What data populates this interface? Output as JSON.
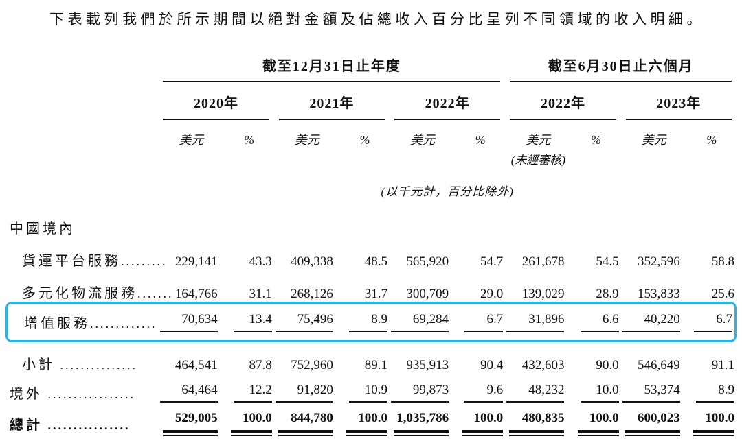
{
  "intro": "下表載列我們於所示期間以絕對金額及佔總收入百分比呈列不同領域的收入明細。",
  "colors": {
    "hl": "#2bb3e3"
  },
  "table": {
    "sections": [
      {
        "label": "截至12月31日止年度",
        "years": [
          "2020年",
          "2021年",
          "2022年"
        ]
      },
      {
        "label": "截至6月30日止六個月",
        "years": [
          "2022年",
          "2023年"
        ]
      }
    ],
    "currency_header": "美元",
    "percent_header": "%",
    "unaudited_note": "(未經審核)",
    "unit_note": "(以千元計，百分比除外)",
    "rows": [
      {
        "label": "中國境內",
        "leader": "",
        "values": []
      },
      {
        "label": "貨運平台服務",
        "leader": ".........",
        "values": [
          "229,141",
          "43.3",
          "409,338",
          "48.5",
          "565,920",
          "54.7",
          "261,678",
          "54.5",
          "352,596",
          "58.8"
        ]
      },
      {
        "label": "多元化物流服務",
        "leader": ".......",
        "values": [
          "164,766",
          "31.1",
          "268,126",
          "31.7",
          "300,709",
          "29.0",
          "139,029",
          "28.9",
          "153,833",
          "25.6"
        ]
      },
      {
        "label": "增值服務",
        "leader": ".............",
        "values": [
          "70,634",
          "13.4",
          "75,496",
          "8.9",
          "69,284",
          "6.7",
          "31,896",
          "6.6",
          "40,220",
          "6.7"
        ]
      },
      {
        "label": "小計",
        "leader": " ...............",
        "values": [
          "464,541",
          "87.8",
          "752,960",
          "89.1",
          "935,913",
          "90.4",
          "432,603",
          "90.0",
          "546,649",
          "91.1"
        ]
      },
      {
        "label": "境外",
        "leader": " .................",
        "values": [
          "64,464",
          "12.2",
          "91,820",
          "10.9",
          "99,873",
          "9.6",
          "48,232",
          "10.0",
          "53,374",
          "8.9"
        ]
      },
      {
        "label": "總計",
        "leader": " ................",
        "values": [
          "529,005",
          "100.0",
          "844,780",
          "100.0",
          "1,035,786",
          "100.0",
          "480,835",
          "100.0",
          "600,023",
          "100.0"
        ]
      }
    ]
  }
}
